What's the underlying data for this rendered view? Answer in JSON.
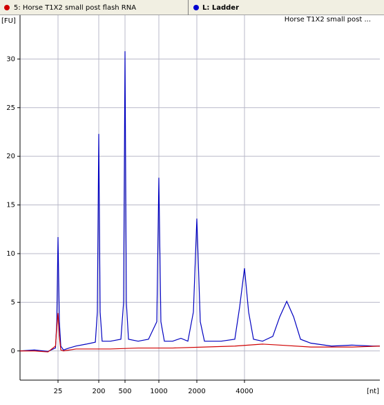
{
  "tabs": [
    {
      "label": "5: Horse T1X2 small post flash RNA",
      "color": "#d00000"
    },
    {
      "label": "L: Ladder",
      "color": "#0000d0"
    }
  ],
  "chart_data": {
    "type": "line",
    "title": "Horse T1X2 small post ...",
    "y_label": "[FU]",
    "x_label": "[nt]",
    "xlim": [
      3.6,
      28700
    ],
    "xticks": [
      25,
      200,
      500,
      1000,
      2000,
      4000
    ],
    "ylim": [
      -3,
      34.5
    ],
    "yticks": [
      0,
      5,
      10,
      15,
      20,
      25,
      30
    ],
    "grid": true,
    "series": [
      {
        "name": "L: Ladder",
        "color": "#0000c0",
        "x": [
          3.6,
          7.5,
          15,
          22,
          23.5,
          25,
          26.8,
          28.8,
          33,
          44,
          62.5,
          106,
          168,
          186,
          200,
          210,
          225,
          301,
          433,
          476,
          500,
          514,
          537,
          655,
          809,
          959,
          1000,
          1038,
          1106,
          1286,
          1496,
          1698,
          1878,
          2000,
          2103,
          2234,
          2845,
          3475,
          3727,
          4000,
          4248,
          4560,
          5200,
          6040,
          6680,
          7400,
          8180,
          9040,
          10500,
          14200,
          19200,
          25900,
          28700
        ],
        "values": [
          0,
          0.1,
          -0.05,
          0.3,
          3,
          11.7,
          3,
          0.5,
          0.1,
          0.3,
          0.5,
          0.7,
          0.9,
          4,
          22.3,
          4,
          1.0,
          1.0,
          1.2,
          5,
          30.8,
          5,
          1.2,
          1.0,
          1.2,
          3,
          17.8,
          3,
          1.0,
          1.0,
          1.3,
          1.0,
          4,
          13.6,
          3,
          1.0,
          1.0,
          1.2,
          4.5,
          8.5,
          4,
          1.2,
          1.0,
          1.5,
          3.5,
          5.1,
          3.5,
          1.2,
          0.8,
          0.5,
          0.6,
          0.5,
          0.5
        ]
      },
      {
        "name": "5: Horse T1X2 small post flash RNA",
        "color": "#d00000",
        "x": [
          3.6,
          7.5,
          15,
          22,
          23.5,
          25,
          26.8,
          28.8,
          33,
          62.5,
          168,
          301,
          655,
          1286,
          2234,
          3475,
          5200,
          6680,
          10500,
          19200,
          28700
        ],
        "values": [
          0,
          0,
          -0.1,
          0.5,
          2.5,
          3.9,
          1.5,
          0.1,
          0,
          0.2,
          0.2,
          0.2,
          0.3,
          0.3,
          0.4,
          0.5,
          0.7,
          0.6,
          0.4,
          0.4,
          0.5
        ]
      }
    ]
  }
}
